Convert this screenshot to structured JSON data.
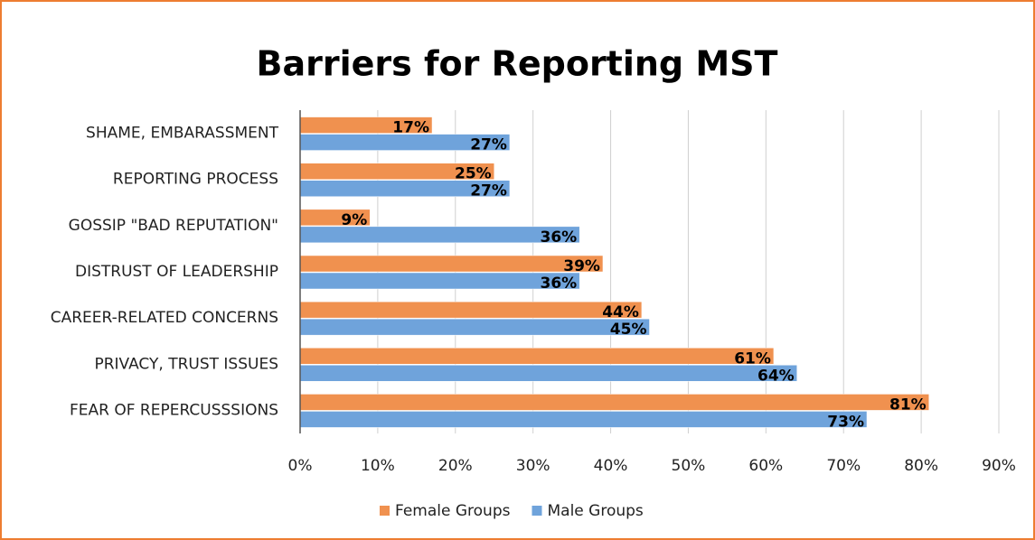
{
  "chart_data": {
    "type": "hbar",
    "title": "Barriers for Reporting MST",
    "categories": [
      "SHAME, EMBARASSMENT",
      "REPORTING PROCESS",
      "GOSSIP \"BAD REPUTATION\"",
      "DISTRUST OF LEADERSHIP",
      "CAREER-RELATED CONCERNS",
      "PRIVACY, TRUST ISSUES",
      "FEAR OF REPERCUSSSIONS"
    ],
    "series": [
      {
        "name": "Female Groups",
        "color": "#f0914f",
        "values": [
          17,
          25,
          9,
          39,
          44,
          61,
          81
        ],
        "value_labels": [
          "17%",
          "25%",
          "9%",
          "39%",
          "44%",
          "61%",
          "81%"
        ]
      },
      {
        "name": "Male Groups",
        "color": "#6fa3db",
        "values": [
          27,
          27,
          36,
          36,
          45,
          64,
          73
        ],
        "value_labels": [
          "27%",
          "27%",
          "36%",
          "36%",
          "45%",
          "64%",
          "73%"
        ]
      }
    ],
    "xlim": [
      0,
      90
    ],
    "xticks": [
      {
        "value": 0,
        "label": "0%"
      },
      {
        "value": 10,
        "label": "10%"
      },
      {
        "value": 20,
        "label": "20%"
      },
      {
        "value": 30,
        "label": "30%"
      },
      {
        "value": 40,
        "label": "40%"
      },
      {
        "value": 50,
        "label": "50%"
      },
      {
        "value": 60,
        "label": "60%"
      },
      {
        "value": 70,
        "label": "70%"
      },
      {
        "value": 80,
        "label": "80%"
      },
      {
        "value": 90,
        "label": "90%"
      }
    ],
    "grid": true,
    "legend": "bottom"
  }
}
